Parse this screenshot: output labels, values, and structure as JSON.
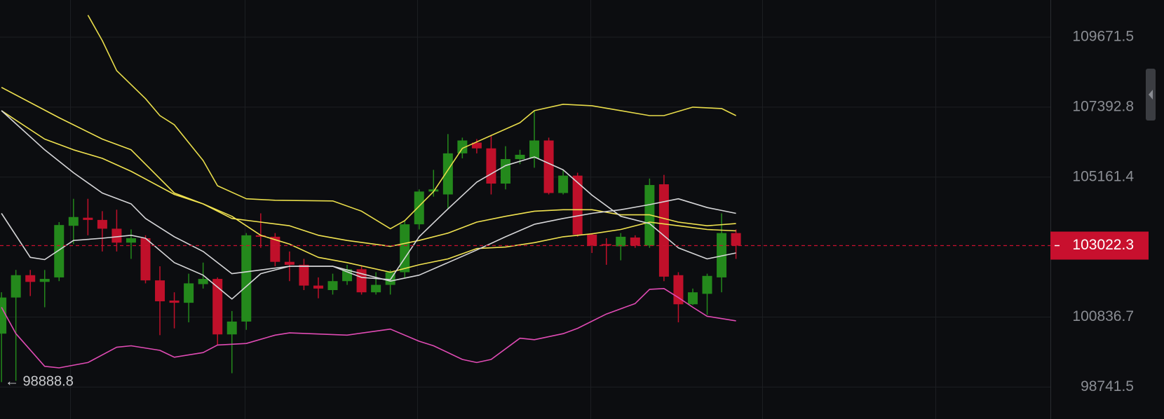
{
  "chart_data": {
    "type": "candlestick",
    "log_scale": true,
    "ylim": [
      97800,
      110900
    ],
    "yticks": [
      98741.5,
      100836.7,
      105161.4,
      107392.8,
      109671.5
    ],
    "grid": true,
    "up_color": "#24891c",
    "down_color": "#c0102a",
    "open": [
      100337,
      101430,
      102112,
      101907,
      102044,
      103637,
      103888,
      103819,
      103546,
      103114,
      103250,
      101953,
      101338,
      101270,
      101839,
      101998,
      100314,
      100701,
      103341,
      103296,
      102522,
      102431,
      101794,
      101657,
      101930,
      102294,
      101589,
      101816,
      102203,
      103683,
      104707,
      104616,
      105913,
      106255,
      106072,
      104957,
      105731,
      105754,
      106323,
      104661,
      105208,
      103364,
      103068,
      103000,
      103273,
      103023,
      104935,
      102112,
      101225,
      101543,
      102044,
      103410
    ],
    "high": [
      101589,
      102272,
      102272,
      102272,
      103751,
      104479,
      104479,
      104092,
      104138,
      103523,
      103341,
      102385,
      101589,
      102158,
      102499,
      102044,
      101020,
      103410,
      104024,
      103410,
      102841,
      102613,
      102044,
      102158,
      102431,
      102385,
      102203,
      102272,
      103796,
      104775,
      105390,
      106528,
      106414,
      106368,
      106482,
      106141,
      106027,
      107279,
      106414,
      105390,
      105299,
      103410,
      103250,
      103410,
      103341,
      105117,
      105230,
      102203,
      101703,
      102158,
      104024,
      103523
    ],
    "low": [
      98888.8,
      98926,
      101475,
      101134,
      101930,
      103068,
      103341,
      102841,
      102841,
      102613,
      101862,
      100291,
      100496,
      100678,
      101703,
      99996,
      99153,
      100451,
      102954,
      102385,
      101930,
      101657,
      101407,
      101520,
      101816,
      101520,
      101520,
      101520,
      102044,
      103523,
      104548,
      104161,
      105754,
      105913,
      104616,
      104775,
      105572,
      105458,
      104616,
      104616,
      103296,
      102795,
      102431,
      102568,
      102954,
      102954,
      101930,
      100678,
      101202,
      100906,
      101589,
      102613
    ],
    "close": [
      101430,
      102112,
      101907,
      101998,
      103660,
      103910,
      103819,
      103546,
      103114,
      103250,
      101953,
      101316,
      101270,
      101862,
      101998,
      100314,
      100701,
      103341,
      103296,
      102522,
      102431,
      101794,
      101703,
      101930,
      102294,
      101589,
      101816,
      102203,
      103683,
      104707,
      104775,
      105913,
      106323,
      106072,
      104957,
      105731,
      105868,
      106323,
      104661,
      105208,
      103364,
      103023,
      103023,
      103296,
      103023,
      104912,
      102067,
      101225,
      101589,
      102090,
      103410,
      103022.3
    ],
    "lines": [
      {
        "color": "#e8dc4a",
        "x": [
          6,
          7,
          8,
          10,
          11,
          12,
          14,
          15,
          17,
          19,
          23,
          25,
          27,
          28,
          30,
          32,
          34,
          36,
          37,
          39,
          41,
          43,
          45,
          46,
          48,
          50,
          51
        ],
        "values": [
          110397,
          109555,
          108576,
          107666,
          107119.5,
          106824,
          105686,
          104889,
          104479,
          104434,
          104411,
          104092,
          103546,
          103797,
          104707,
          106073,
          106482,
          106892,
          107279,
          107484,
          107438,
          107279,
          107120,
          107120,
          107393,
          107347,
          107120
        ]
      },
      {
        "color": "#f0e250",
        "x": [
          0,
          4,
          7,
          9,
          12,
          14,
          16,
          18,
          20,
          22,
          24,
          27,
          29,
          31,
          33,
          35,
          37,
          39,
          41,
          43,
          45,
          47,
          49,
          51
        ],
        "values": [
          108030,
          107051,
          106368,
          106027,
          104661,
          104320,
          103865,
          103751,
          103637,
          103341,
          103182,
          103000,
          103182,
          103410,
          103751,
          103933,
          104092,
          104138,
          104138,
          103979,
          103979,
          103751,
          103637,
          103705
        ]
      },
      {
        "color": "#f0e250",
        "x": [
          0,
          3,
          5,
          7,
          9,
          12,
          14,
          16,
          18,
          20,
          22,
          24,
          27,
          29,
          31,
          33,
          35,
          37,
          39,
          41,
          43,
          45,
          47,
          49,
          51
        ],
        "values": [
          107279,
          106368,
          106027,
          105754,
          105344,
          104616,
          104320,
          103933,
          103341,
          103068,
          102659,
          102499,
          102203,
          102431,
          102613,
          102932,
          102977,
          103114,
          103296,
          103387,
          103523,
          103751,
          103637,
          103523,
          103478
        ]
      },
      {
        "color": "#d6d6d8",
        "x": [
          0,
          3,
          5,
          7,
          9,
          10,
          12,
          14,
          16,
          18,
          20,
          23,
          24,
          27,
          29,
          31,
          33,
          35,
          37,
          39,
          41,
          43,
          45,
          47,
          49,
          51
        ],
        "values": [
          107279,
          106027,
          105299,
          104661,
          104320,
          103865,
          103296,
          102841,
          102158,
          102272,
          102385,
          102385,
          102272,
          101930,
          102112,
          102499,
          102886,
          103296,
          103683,
          103865,
          104024,
          104138,
          104297,
          104479,
          104206,
          104024
        ]
      },
      {
        "color": "#d6d6d8",
        "x": [
          0,
          2,
          3,
          5,
          7,
          9,
          10,
          12,
          14,
          16,
          18,
          20,
          23,
          25,
          27,
          29,
          31,
          33,
          35,
          37,
          39,
          41,
          43,
          45,
          47,
          49,
          51
        ],
        "values": [
          104024,
          102659,
          102590,
          103182,
          103250,
          103341,
          103250,
          102499,
          102112,
          101384,
          102158,
          102385,
          102385,
          102044,
          101976,
          103296,
          104161,
          105003,
          105526,
          105799,
          105390,
          104593,
          103933,
          103705,
          102954,
          102613,
          102795
        ]
      },
      {
        "color": "#e04bb4",
        "x": [
          0,
          1,
          3,
          4,
          6,
          8,
          9,
          11,
          12,
          14,
          15,
          17,
          19,
          20,
          24,
          27,
          29,
          30,
          32,
          33,
          34,
          36,
          37,
          39,
          40,
          42,
          44,
          45,
          46,
          47,
          48,
          49,
          51
        ],
        "values": [
          101134,
          100337,
          99358,
          99313,
          99472,
          99927,
          99973,
          99836,
          99631,
          99768,
          99996,
          100041,
          100291,
          100360,
          100291,
          100474,
          100109,
          99973,
          99563,
          99472,
          99563,
          100200,
          100155,
          100337,
          100496,
          100929,
          101247,
          101680,
          101703,
          101429,
          101134,
          100860,
          100724
        ]
      }
    ],
    "current_price": 103022.3,
    "current_price_color": "#c8102e",
    "low_label": "← 98888.8"
  }
}
